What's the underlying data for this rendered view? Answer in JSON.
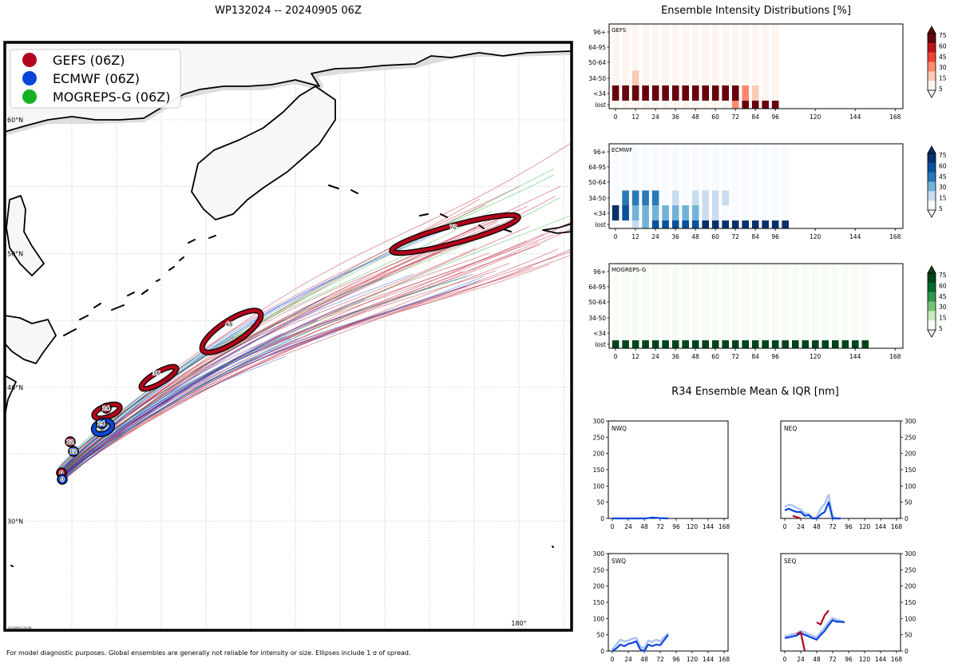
{
  "page": {
    "title": "WP132024 -- 20240905 06Z",
    "footer": "For model diagnostic purposes. Global ensembles are generally not reliable for intensity or size. Ellipses include 1 σ of spread.",
    "stamp": "20240905 20:06"
  },
  "colors": {
    "gefs": "#b2041c",
    "ecmwf": "#0a47d9",
    "mogreps": "#16b022"
  },
  "chart_data": [
    {
      "type": "map",
      "title": "WP132024 -- 20240905 06Z",
      "legend": [
        "GEFS (06Z)",
        "ECMWF (06Z)",
        "MOGREPS-G (06Z)"
      ],
      "lat_labels": [
        "60°N",
        "50°N",
        "40°N",
        "30°N"
      ],
      "lon_labels": [
        "180°"
      ],
      "lat_range": [
        23,
        67
      ],
      "lon_range": [
        122,
        188
      ],
      "gefs_mean_track": [
        {
          "hour": 0,
          "lat": 33.1,
          "lon": 130.6
        },
        {
          "hour": 12,
          "lat": 35.9,
          "lon": 131.8
        },
        {
          "hour": 24,
          "lat": 38.2,
          "lon": 134.5
        },
        {
          "hour": 36,
          "lat": 40.6,
          "lon": 138.5
        },
        {
          "hour": 48,
          "lat": 44.2,
          "lon": 145.0
        },
        {
          "hour": 72,
          "lat": 52.2,
          "lon": 166.0
        }
      ],
      "ecmwf_mean_track": [
        {
          "hour": 0,
          "lat": 32.8,
          "lon": 130.7
        },
        {
          "hour": 12,
          "lat": 35.1,
          "lon": 132.0
        },
        {
          "hour": 24,
          "lat": 37.4,
          "lon": 134.3
        }
      ]
    },
    {
      "type": "heatmap",
      "title": "Ensemble Intensity Distributions [%]",
      "panels": [
        "GEFS",
        "ECMWF",
        "MOGREPS-G"
      ],
      "x_ticks": [
        0,
        12,
        24,
        36,
        48,
        60,
        72,
        84,
        96,
        120,
        144,
        168
      ],
      "y_categories": [
        "lost",
        "<34",
        "34-50",
        "50-64",
        "64-95",
        "96+"
      ],
      "colorbar_ticks": [
        5,
        15,
        30,
        45,
        60,
        75
      ],
      "gefs": {
        "hours": [
          0,
          6,
          12,
          18,
          24,
          30,
          36,
          42,
          48,
          54,
          60,
          66,
          72,
          78,
          84,
          90,
          96
        ],
        "lost": [
          0,
          0,
          0,
          0,
          0,
          0,
          0,
          0,
          0,
          0,
          0,
          3,
          20,
          80,
          90,
          90,
          90
        ],
        "lt34": [
          100,
          100,
          100,
          100,
          100,
          100,
          100,
          100,
          100,
          100,
          100,
          97,
          80,
          20,
          10,
          0,
          0
        ],
        "34-50": [
          0,
          0,
          10,
          0,
          0,
          0,
          0,
          0,
          0,
          0,
          0,
          0,
          0,
          0,
          0,
          0,
          0
        ],
        "50-64": [
          0,
          0,
          0,
          0,
          0,
          0,
          0,
          0,
          0,
          0,
          0,
          0,
          0,
          0,
          0,
          0,
          0
        ],
        "64-95": [
          0,
          0,
          0,
          0,
          0,
          0,
          0,
          0,
          0,
          0,
          0,
          0,
          0,
          0,
          0,
          0,
          0
        ],
        "96+": [
          0,
          0,
          0,
          0,
          0,
          0,
          0,
          0,
          0,
          0,
          0,
          0,
          0,
          0,
          0,
          0,
          0
        ]
      },
      "ecmwf": {
        "hours": [
          0,
          6,
          12,
          18,
          24,
          30,
          36,
          42,
          48,
          54,
          60,
          66,
          72,
          78,
          84,
          90,
          96,
          102
        ],
        "lost": [
          0,
          0,
          10,
          20,
          45,
          45,
          45,
          45,
          55,
          80,
          80,
          80,
          80,
          95,
          95,
          95,
          95,
          95
        ],
        "lt34": [
          80,
          55,
          25,
          25,
          25,
          25,
          25,
          25,
          25,
          10,
          5,
          0,
          0,
          0,
          0,
          0,
          0,
          0
        ],
        "34-50": [
          0,
          40,
          40,
          40,
          40,
          0,
          10,
          0,
          10,
          10,
          10,
          10,
          0,
          0,
          0,
          0,
          0,
          0
        ],
        "50-64": [
          0,
          0,
          0,
          0,
          0,
          0,
          0,
          0,
          0,
          0,
          0,
          0,
          0,
          0,
          0,
          0,
          0,
          0
        ],
        "64-95": [
          0,
          0,
          0,
          0,
          0,
          0,
          0,
          0,
          0,
          0,
          0,
          0,
          0,
          0,
          0,
          0,
          0,
          0
        ],
        "96+": [
          0,
          0,
          0,
          0,
          0,
          0,
          0,
          0,
          0,
          0,
          0,
          0,
          0,
          0,
          0,
          0,
          0,
          0
        ]
      },
      "mogreps": {
        "hours": [
          0,
          6,
          12,
          18,
          24,
          30,
          36,
          42,
          48,
          54,
          60,
          66,
          72,
          78,
          84,
          90,
          96,
          102,
          108,
          114,
          120,
          126,
          132,
          138,
          144,
          150
        ],
        "lost": [
          100,
          100,
          100,
          100,
          100,
          100,
          100,
          100,
          100,
          100,
          100,
          100,
          100,
          100,
          100,
          100,
          100,
          100,
          100,
          100,
          100,
          100,
          100,
          100,
          100,
          100
        ]
      }
    },
    {
      "type": "line",
      "title": "R34 Ensemble Mean & IQR [nm]",
      "panels": [
        "NWQ",
        "NEQ",
        "SWQ",
        "SEQ"
      ],
      "x_ticks": [
        0,
        24,
        48,
        72,
        96,
        120,
        144,
        168
      ],
      "y_ticks": [
        0,
        50,
        100,
        150,
        200,
        250,
        300
      ],
      "ylim": [
        0,
        300
      ],
      "xlim": [
        -6,
        174
      ],
      "NWQ": {
        "ecmwf_mean": {
          "x": [
            0,
            12,
            24,
            36,
            48,
            54,
            60,
            72,
            84
          ],
          "y": [
            0,
            0,
            0,
            0,
            0,
            1,
            3,
            1,
            0
          ]
        },
        "gefs_mean": {
          "x": [],
          "y": []
        }
      },
      "NEQ": {
        "ecmwf_mean": {
          "x": [
            0,
            6,
            12,
            18,
            24,
            30,
            36,
            42,
            48,
            54,
            60,
            66,
            72,
            78,
            84
          ],
          "y": [
            25,
            30,
            24,
            20,
            20,
            8,
            10,
            0,
            0,
            12,
            20,
            50,
            0,
            0,
            0
          ]
        },
        "ecmwf_iqr_hi": {
          "x": [
            0,
            6,
            12,
            18,
            24,
            30,
            36,
            42,
            48,
            54,
            60,
            66,
            72,
            78,
            84
          ],
          "y": [
            35,
            42,
            40,
            32,
            28,
            15,
            15,
            0,
            5,
            30,
            45,
            72,
            5,
            0,
            0
          ]
        },
        "gefs_mean": {
          "x": [
            12,
            24
          ],
          "y": [
            8,
            0
          ]
        }
      },
      "SWQ": {
        "ecmwf_mean": {
          "x": [
            0,
            6,
            12,
            18,
            24,
            30,
            36,
            42,
            48,
            54,
            60,
            66,
            72,
            84
          ],
          "y": [
            0,
            8,
            20,
            15,
            22,
            25,
            30,
            5,
            0,
            20,
            15,
            20,
            18,
            50
          ]
        },
        "ecmwf_iqr_hi": {
          "x": [
            0,
            6,
            12,
            18,
            24,
            30,
            36,
            42,
            48,
            54,
            60,
            66,
            72,
            84
          ],
          "y": [
            5,
            20,
            35,
            30,
            32,
            38,
            40,
            15,
            8,
            32,
            28,
            35,
            30,
            55
          ]
        },
        "gefs_mean": {
          "x": [],
          "y": []
        }
      },
      "SEQ": {
        "ecmwf_mean": {
          "x": [
            0,
            6,
            12,
            18,
            24,
            30,
            36,
            42,
            48,
            54,
            60,
            66,
            72,
            78,
            84,
            90
          ],
          "y": [
            40,
            42,
            45,
            48,
            55,
            50,
            45,
            40,
            35,
            50,
            62,
            80,
            95,
            90,
            90,
            88
          ]
        },
        "ecmwf_iqr_hi": {
          "x": [
            0,
            6,
            12,
            18,
            24,
            30,
            36,
            42,
            48,
            54,
            60,
            66,
            72,
            78,
            84,
            90
          ],
          "y": [
            45,
            48,
            52,
            55,
            62,
            58,
            52,
            48,
            42,
            58,
            72,
            90,
            102,
            96,
            94,
            90
          ]
        },
        "gefs_mean": {
          "x": [
            18,
            24,
            30,
            48,
            54,
            60,
            66
          ],
          "y": [
            52,
            58,
            0,
            88,
            82,
            110,
            125
          ]
        }
      }
    }
  ]
}
